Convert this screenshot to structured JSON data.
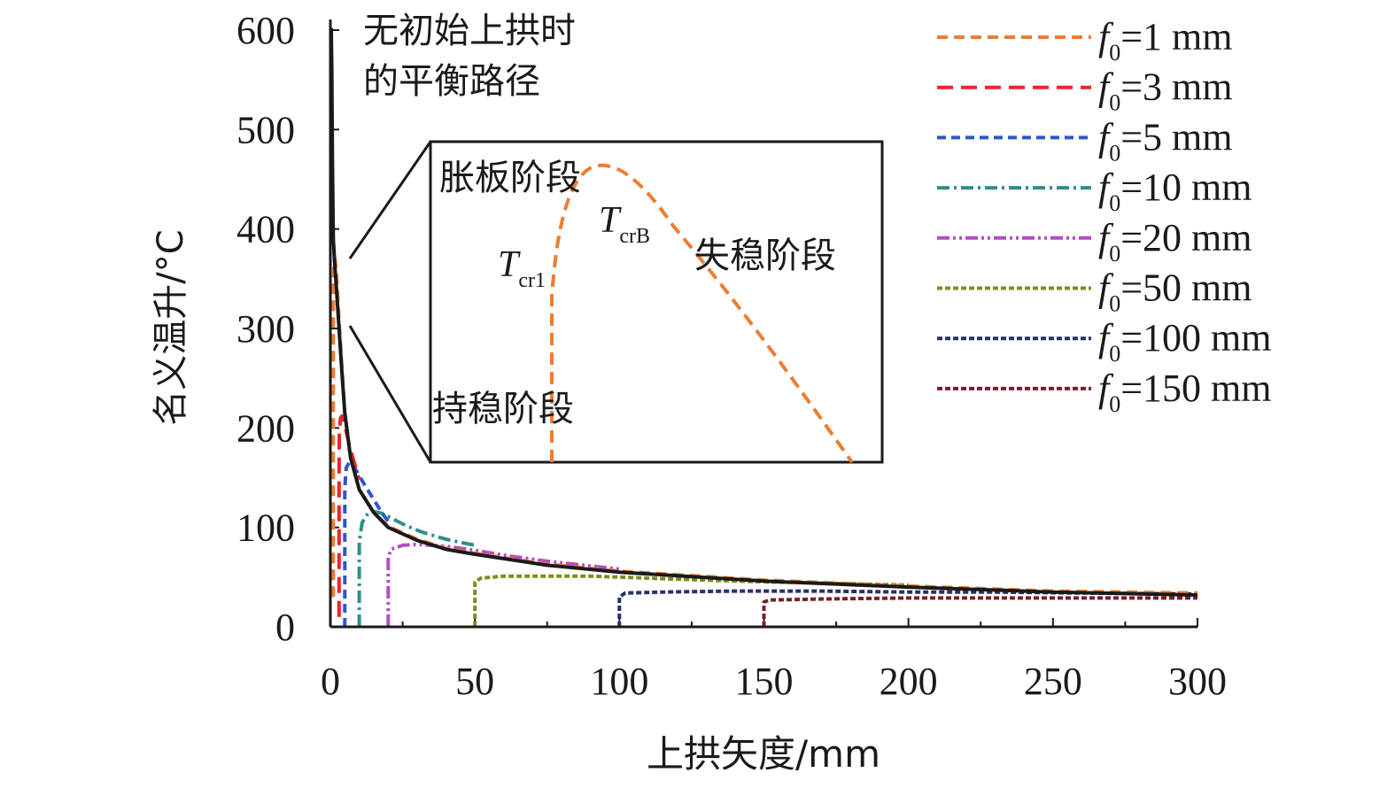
{
  "chart_data": {
    "type": "line",
    "xlabel": "上拱矢度/mm",
    "ylabel": "名义温升/°C",
    "xlim": [
      0,
      300
    ],
    "ylim": [
      0,
      600
    ],
    "xticks": [
      0,
      50,
      100,
      150,
      200,
      250,
      300
    ],
    "yticks": [
      0,
      100,
      200,
      300,
      400,
      500,
      600
    ],
    "grid": false,
    "legend_position": "top-right",
    "equilibrium_label": [
      "无初始上拱时",
      "的平衡路径"
    ],
    "equilibrium_path": {
      "name": "无初始上拱时的平衡路径",
      "color": "#1a1a1a",
      "x": [
        0.3,
        0.5,
        0.7,
        1,
        1.5,
        2,
        3,
        4,
        5,
        7,
        10,
        15,
        20,
        30,
        40,
        50,
        75,
        100,
        150,
        200,
        250,
        300
      ],
      "y": [
        610,
        560,
        470,
        390,
        365,
        345,
        300,
        255,
        215,
        170,
        138,
        115,
        100,
        87,
        78,
        73,
        62,
        55,
        46,
        40,
        35,
        32
      ]
    },
    "series": [
      {
        "legend_prefix": "f",
        "legend_sub": "0",
        "legend_suffix": "=1 mm",
        "f0": 1,
        "color": "#ee7d31",
        "dash": "12,7",
        "width": 4,
        "x": [
          1,
          1,
          1.1,
          1.3,
          1.6,
          2,
          3,
          4,
          5,
          7,
          10,
          15,
          20,
          30,
          40,
          50,
          75,
          100,
          150,
          200,
          250,
          300
        ],
        "y": [
          30,
          300,
          350,
          368,
          370,
          360,
          308,
          260,
          215,
          170,
          138,
          115,
          101,
          88,
          79,
          74,
          63,
          56,
          47,
          41,
          36,
          34
        ]
      },
      {
        "legend_prefix": "f",
        "legend_sub": "0",
        "legend_suffix": "=3 mm",
        "f0": 3,
        "color": "#e8262b",
        "dash": "18,9",
        "width": 4,
        "x": [
          3,
          3,
          3.1,
          3.5,
          4,
          5,
          6,
          7,
          8,
          10
        ],
        "y": [
          10,
          150,
          195,
          210,
          212,
          202,
          190,
          178,
          168,
          148
        ]
      },
      {
        "legend_prefix": "f",
        "legend_sub": "0",
        "legend_suffix": "=5 mm",
        "f0": 5,
        "color": "#2e58c8",
        "dash": "10,6",
        "width": 4,
        "x": [
          5,
          5,
          5.5,
          6.5,
          8,
          10,
          12,
          15,
          18,
          20
        ],
        "y": [
          0,
          140,
          160,
          165,
          162,
          152,
          142,
          128,
          114,
          106
        ]
      },
      {
        "legend_prefix": "f",
        "legend_sub": "0",
        "legend_suffix": "=10 mm",
        "f0": 10,
        "color": "#2f8f86",
        "dash": "14,5,3,5",
        "width": 4,
        "x": [
          10,
          10,
          11,
          13,
          15,
          18,
          22,
          26,
          32,
          40,
          50
        ],
        "y": [
          0,
          85,
          105,
          114,
          116,
          114,
          108,
          102,
          95,
          88,
          82
        ]
      },
      {
        "legend_prefix": "f",
        "legend_sub": "0",
        "legend_suffix": "=20 mm",
        "f0": 20,
        "color": "#b04fc1",
        "dash": "14,4,3,4,3,4",
        "width": 4,
        "x": [
          20,
          20,
          21,
          25,
          30,
          40,
          50,
          60,
          75,
          100
        ],
        "y": [
          0,
          70,
          78,
          82,
          83,
          81,
          77,
          72,
          66,
          58
        ]
      },
      {
        "legend_prefix": "f",
        "legend_sub": "0",
        "legend_suffix": "=50 mm",
        "f0": 50,
        "color": "#7f8c22",
        "dash": "6,3",
        "width": 4,
        "x": [
          50,
          50,
          52,
          60,
          75,
          90,
          110,
          140,
          170,
          200
        ],
        "y": [
          0,
          45,
          49,
          51,
          51,
          51,
          49,
          46,
          44,
          42
        ]
      },
      {
        "legend_prefix": "f",
        "legend_sub": "0",
        "legend_suffix": "=100 mm",
        "f0": 100,
        "color": "#27306a",
        "dash": "6,3",
        "width": 4,
        "x": [
          100,
          100,
          102,
          115,
          140,
          170,
          200,
          230,
          260,
          300
        ],
        "y": [
          0,
          30,
          34,
          35,
          36,
          36,
          35,
          35,
          34,
          33
        ]
      },
      {
        "legend_prefix": "f",
        "legend_sub": "0",
        "legend_suffix": "=150 mm",
        "f0": 150,
        "color": "#7a1f2a",
        "dash": "6,3",
        "width": 4,
        "x": [
          150,
          150,
          152,
          170,
          200,
          250,
          300
        ],
        "y": [
          0,
          25,
          27,
          28,
          29,
          29,
          29
        ]
      }
    ],
    "inset": {
      "labels": {
        "stage_bulge": "胀板阶段",
        "stage_stable": "持稳阶段",
        "stage_unstable": "失稳阶段",
        "tcr1_main": "T",
        "tcr1_sub": "cr1",
        "tcrb_main": "T",
        "tcrb_sub": "crB"
      }
    }
  }
}
